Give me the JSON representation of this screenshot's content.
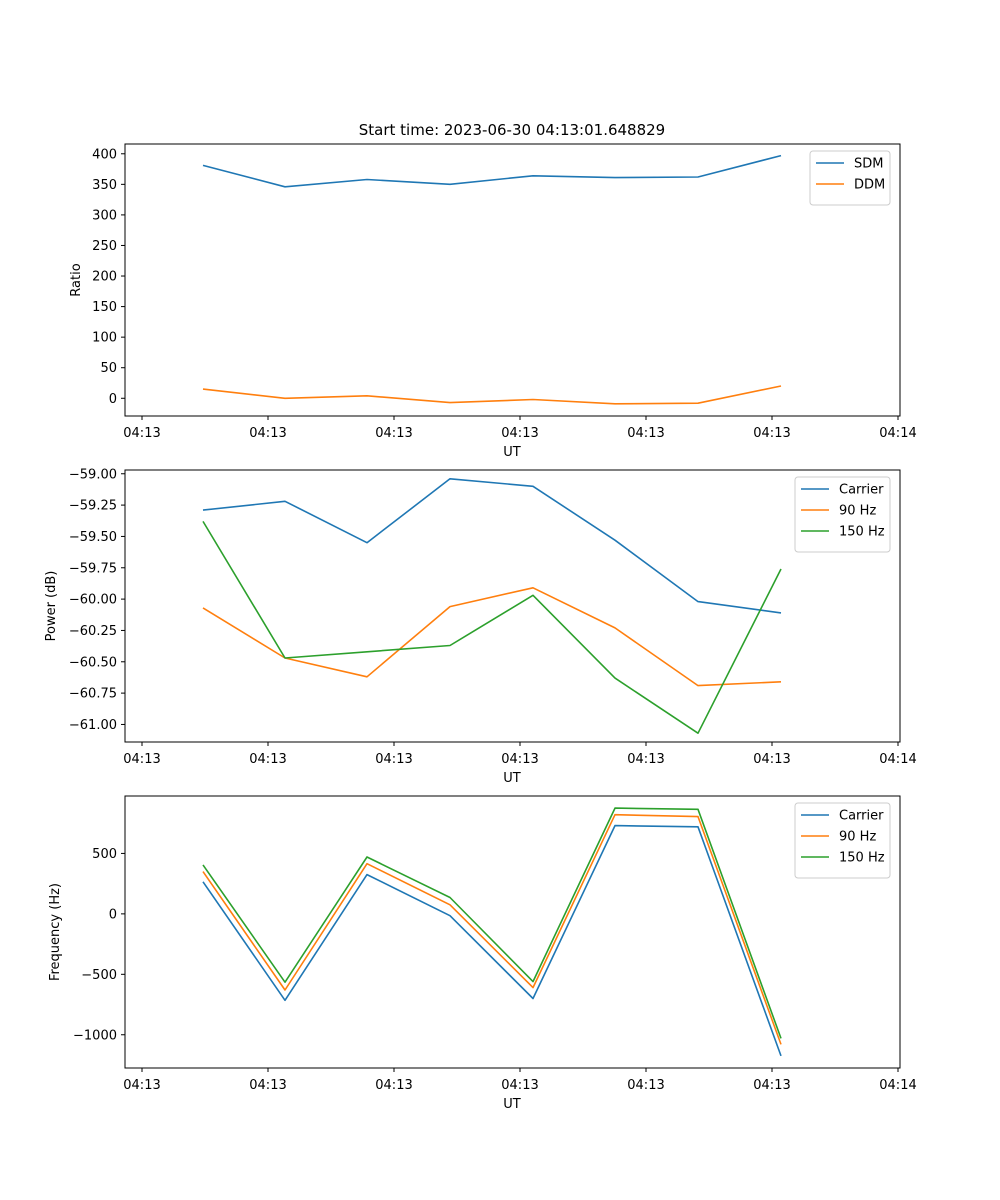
{
  "title": "Start time: 2023-06-30 04:13:01.648829",
  "colors": {
    "blue": "#1f77b4",
    "orange": "#ff7f0e",
    "green": "#2ca02c"
  },
  "chart_data": [
    {
      "type": "line",
      "xlabel": "UT",
      "ylabel": "Ratio",
      "x_tick_labels": [
        "04:13",
        "04:13",
        "04:13",
        "04:13",
        "04:13",
        "04:13",
        "04:14"
      ],
      "y_ticks": [
        0,
        50,
        100,
        150,
        200,
        250,
        300,
        350,
        400
      ],
      "y_tick_labels": [
        "0",
        "50",
        "100",
        "150",
        "200",
        "250",
        "300",
        "350",
        "400"
      ],
      "ylim": [
        -29,
        416
      ],
      "legend_position": "top-right",
      "series": [
        {
          "name": "SDM",
          "color": "#1f77b4",
          "values": [
            381,
            346,
            358,
            350,
            364,
            361,
            362,
            397
          ]
        },
        {
          "name": "DDM",
          "color": "#ff7f0e",
          "values": [
            15,
            0,
            4,
            -7,
            -2,
            -9,
            -8,
            20
          ]
        }
      ]
    },
    {
      "type": "line",
      "xlabel": "UT",
      "ylabel": "Power (dB)",
      "x_tick_labels": [
        "04:13",
        "04:13",
        "04:13",
        "04:13",
        "04:13",
        "04:13",
        "04:14"
      ],
      "y_ticks": [
        -61.0,
        -60.75,
        -60.5,
        -60.25,
        -60.0,
        -59.75,
        -59.5,
        -59.25,
        -59.0
      ],
      "y_tick_labels": [
        "−61.00",
        "−60.75",
        "−60.50",
        "−60.25",
        "−60.00",
        "−59.75",
        "−59.50",
        "−59.25",
        "−59.00"
      ],
      "ylim": [
        -61.14,
        -58.97
      ],
      "legend_position": "top-right",
      "series": [
        {
          "name": "Carrier",
          "color": "#1f77b4",
          "values": [
            -59.29,
            -59.22,
            -59.55,
            -59.04,
            -59.1,
            -59.53,
            -60.02,
            -60.11
          ]
        },
        {
          "name": "90 Hz",
          "color": "#ff7f0e",
          "values": [
            -60.07,
            -60.47,
            -60.62,
            -60.06,
            -59.91,
            -60.23,
            -60.69,
            -60.66
          ]
        },
        {
          "name": "150 Hz",
          "color": "#2ca02c",
          "values": [
            -59.38,
            -60.47,
            -60.42,
            -60.37,
            -59.97,
            -60.63,
            -61.07,
            -59.76
          ]
        }
      ]
    },
    {
      "type": "line",
      "xlabel": "UT",
      "ylabel": "Frequency (Hz)",
      "x_tick_labels": [
        "04:13",
        "04:13",
        "04:13",
        "04:13",
        "04:13",
        "04:13",
        "04:14"
      ],
      "y_ticks": [
        -1000,
        -500,
        0,
        500
      ],
      "y_tick_labels": [
        "−1000",
        "−500",
        "0",
        "500"
      ],
      "ylim": [
        -1275,
        975
      ],
      "legend_position": "top-right",
      "series": [
        {
          "name": "Carrier",
          "color": "#1f77b4",
          "values": [
            265,
            -715,
            325,
            -15,
            -700,
            730,
            720,
            -1175
          ]
        },
        {
          "name": "90 Hz",
          "color": "#ff7f0e",
          "values": [
            350,
            -630,
            415,
            75,
            -610,
            820,
            805,
            -1080
          ]
        },
        {
          "name": "150 Hz",
          "color": "#2ca02c",
          "values": [
            405,
            -565,
            470,
            135,
            -560,
            875,
            865,
            -1030
          ]
        }
      ]
    }
  ]
}
